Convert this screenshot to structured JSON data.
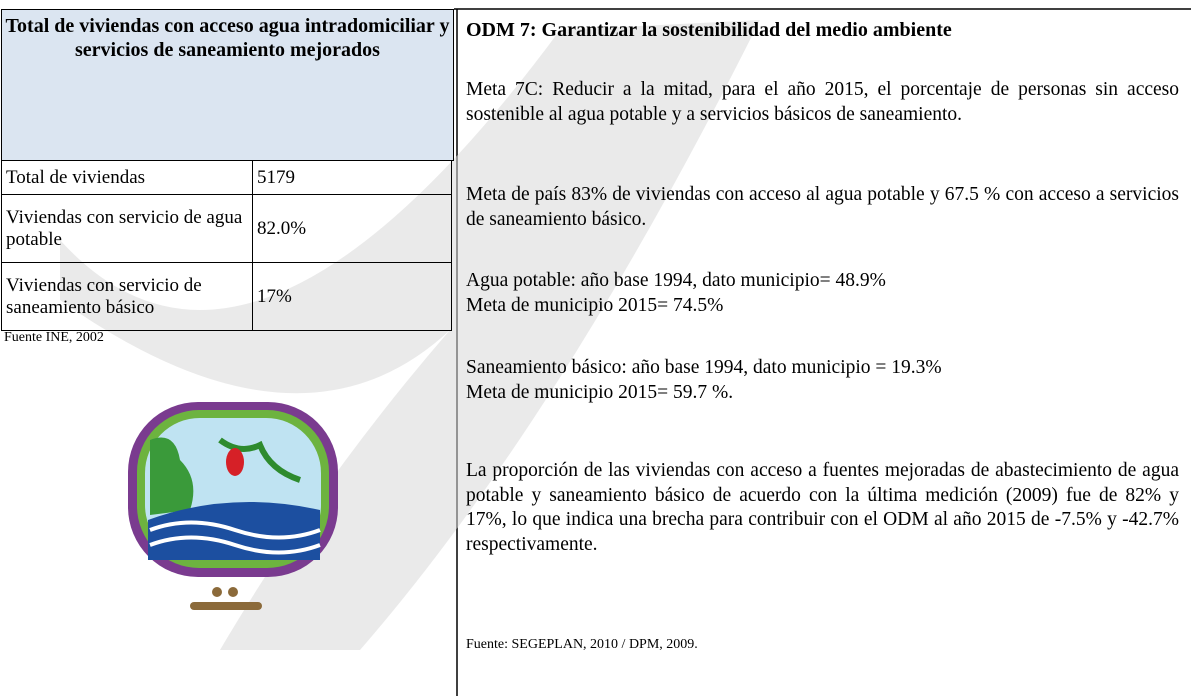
{
  "left": {
    "header": "Total de viviendas con acceso agua intradomiciliar y servicios de saneamiento mejorados",
    "rows": [
      [
        "Total de viviendas",
        "5179"
      ],
      [
        "Viviendas con servicio de agua potable",
        "82.0%"
      ],
      [
        "Viviendas con servicio de saneamiento básico",
        "17%"
      ]
    ],
    "source": "Fuente INE, 2002"
  },
  "right": {
    "title": "ODM 7: Garantizar la sostenibilidad del medio ambiente",
    "paragraphs": [
      [
        "Meta 7C: Reducir a la mitad, para el año 2015, el porcentaje de personas sin acceso sostenible al agua potable y a servicios básicos de saneamiento."
      ],
      [
        "Meta de país 83% de viviendas con acceso al agua potable y 67.5 % con acceso a servicios de saneamiento básico."
      ],
      [
        "Agua potable: año base 1994, dato municipio= 48.9%",
        "Meta de municipio 2015= 74.5%"
      ],
      [
        "Saneamiento básico: año base 1994, dato municipio = 19.3%",
        "Meta de municipio 2015= 59.7 %."
      ],
      [
        "La proporción de las viviendas con acceso a fuentes mejoradas de abastecimiento de agua potable y saneamiento básico de acuerdo con la última medición (2009) fue de 82% y 17%, lo que indica una brecha para contribuir con el ODM al año 2015 de -7.5% y -42.7% respectivamente."
      ]
    ],
    "source": "Fuente: SEGEPLAN, 2010 / DPM, 2009."
  }
}
